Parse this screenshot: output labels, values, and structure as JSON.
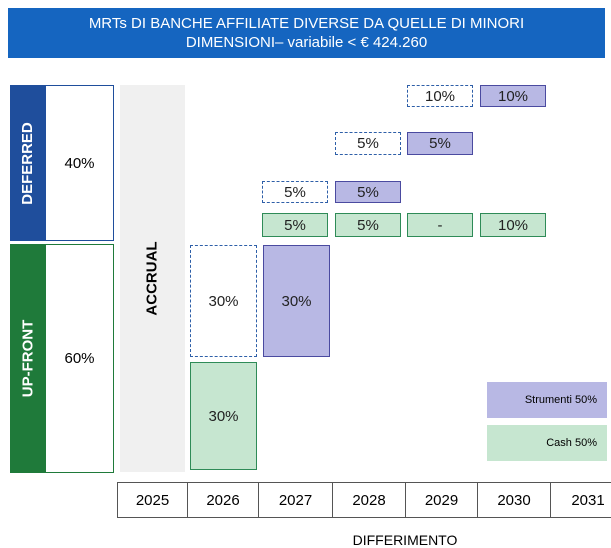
{
  "header": {
    "title_lines": [
      "MRTs DI BANCHE AFFILIATE DIVERSE DA QUELLE DI MINORI",
      "DIMENSIONI– variabile < € 424.260"
    ]
  },
  "sections": [
    {
      "label": "DEFERRED",
      "share": "40%"
    },
    {
      "label": "UP-FRONT",
      "share": "60%"
    }
  ],
  "accrual": "ACCRUAL",
  "cells": [
    "10%",
    "10%",
    "5%",
    "5%",
    "5%",
    "5%",
    "5%",
    "5%",
    "-",
    "10%",
    "30%",
    "30%",
    "30%"
  ],
  "legend": [
    "Strumenti 50%",
    "Cash 50%"
  ],
  "years": [
    "2025",
    "2026",
    "2027",
    "2028",
    "2029",
    "2030",
    "2031"
  ],
  "x_label": "DIFFERIMENTO"
}
